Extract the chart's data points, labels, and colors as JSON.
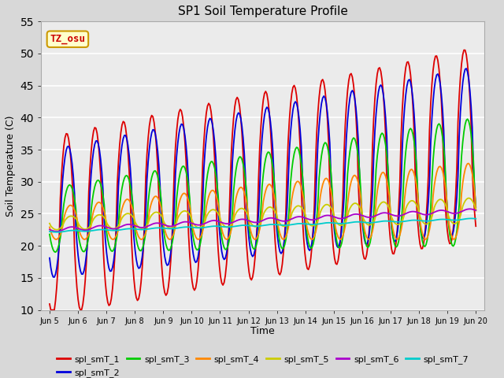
{
  "title": "SP1 Soil Temperature Profile",
  "xlabel": "Time",
  "ylabel": "Soil Temperature (C)",
  "ylim": [
    10,
    55
  ],
  "annotation": "TZ_osu",
  "annotation_color": "#cc0000",
  "annotation_bg": "#ffffcc",
  "annotation_border": "#cc9900",
  "series_names": [
    "spl_smT_1",
    "spl_smT_2",
    "spl_smT_3",
    "spl_smT_4",
    "spl_smT_5",
    "spl_smT_6",
    "spl_smT_7"
  ],
  "series_colors": [
    "#dd0000",
    "#0000dd",
    "#00cc00",
    "#ff8800",
    "#cccc00",
    "#aa00cc",
    "#00cccc"
  ],
  "fig_bg": "#d8d8d8",
  "plot_bg": "#ebebeb",
  "yticks": [
    10,
    15,
    20,
    25,
    30,
    35,
    40,
    45,
    50,
    55
  ],
  "xtick_labels": [
    "Jun 5",
    "Jun 6",
    "Jun 7",
    "Jun 8",
    "Jun 9",
    "Jun 10",
    "Jun 11",
    "Jun 12",
    "Jun 13",
    "Jun 14",
    "Jun 15",
    "Jun 16",
    "Jun 17",
    "Jun 18",
    "Jun 19",
    "Jun 20"
  ]
}
